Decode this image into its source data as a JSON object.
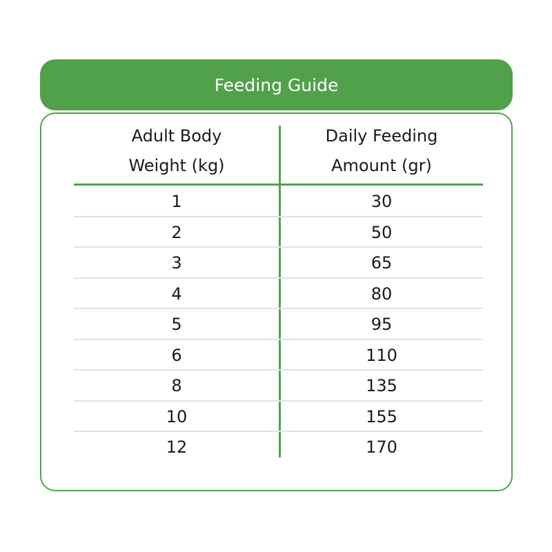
{
  "title": "Feeding Guide",
  "columns": [
    "Adult Body Weight (kg)",
    "Daily Feeding Amount (gr)"
  ],
  "column_lines": [
    [
      "Adult Body",
      "Weight (kg)"
    ],
    [
      "Daily Feeding",
      "Amount (gr)"
    ]
  ],
  "rows": [
    [
      "1",
      "30"
    ],
    [
      "2",
      "50"
    ],
    [
      "3",
      "65"
    ],
    [
      "4",
      "80"
    ],
    [
      "5",
      "95"
    ],
    [
      "6",
      "110"
    ],
    [
      "8",
      "135"
    ],
    [
      "10",
      "155"
    ],
    [
      "12",
      "170"
    ]
  ],
  "colors": {
    "accent": "#50a14a",
    "divider": "#e2e2e2"
  }
}
